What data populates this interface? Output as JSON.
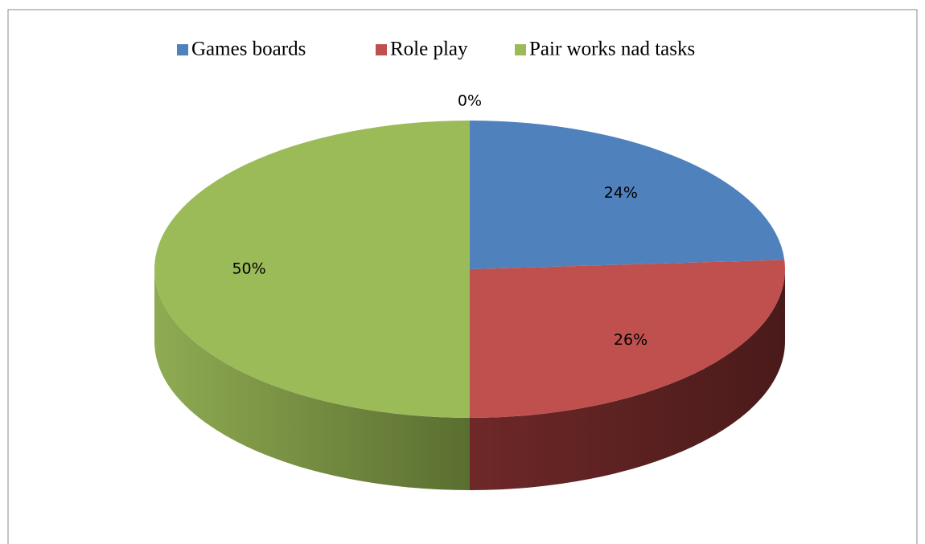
{
  "chart_data": {
    "type": "pie3d",
    "categories": [
      "Games boards",
      "Role play",
      "Pair works nad tasks",
      null
    ],
    "values": [
      24,
      26,
      50,
      0
    ],
    "value_labels": [
      "24%",
      "26%",
      "50%",
      "0%"
    ],
    "colors": [
      "#4f81bd",
      "#c0504d",
      "#9bbb59"
    ],
    "legend": "top"
  }
}
